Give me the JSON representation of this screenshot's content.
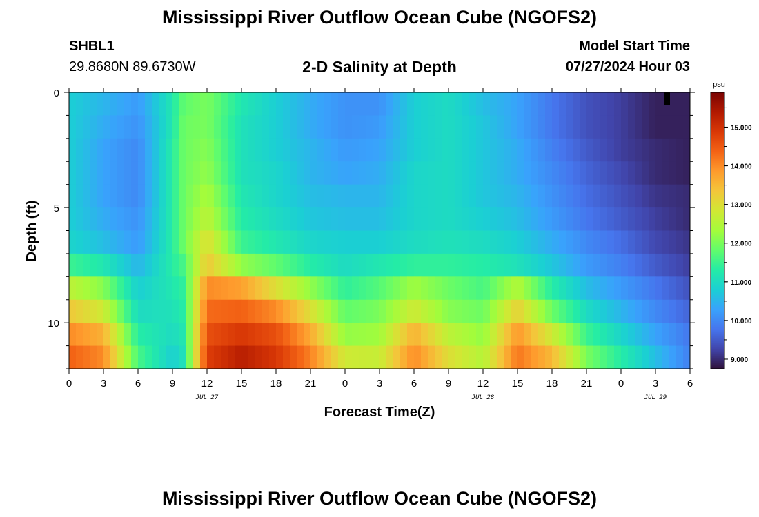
{
  "header": {
    "title": "Mississippi River Outflow Ocean Cube (NGOFS2)",
    "station_id": "SHBL1",
    "station_coords": "29.8680N  89.6730W",
    "subtitle": "2-D Salinity at Depth",
    "start_label": "Model Start Time",
    "start_value": "07/27/2024 Hour 03"
  },
  "footer": {
    "title": "Mississippi River Outflow Ocean Cube (NGOFS2)"
  },
  "chart_data": {
    "type": "heatmap",
    "xlabel": "Forecast Time(Z)",
    "ylabel": "Depth (ft)",
    "x_range_hours": [
      0,
      54
    ],
    "x_tick_labels": [
      "0",
      "3",
      "6",
      "9",
      "12",
      "15",
      "18",
      "21",
      "0",
      "3",
      "6",
      "9",
      "12",
      "15",
      "18",
      "21",
      "0",
      "3",
      "6"
    ],
    "date_labels": [
      {
        "text": "JUL 27",
        "hour": 12
      },
      {
        "text": "JUL 28",
        "hour": 36
      },
      {
        "text": "JUL 29",
        "hour": 51
      }
    ],
    "y_range": [
      0,
      12
    ],
    "y_ticks": [
      0,
      5,
      10
    ],
    "y_inverted": true,
    "colorbar": {
      "unit": "psu",
      "range": [
        8.75,
        15.9
      ],
      "ticks": [
        "9.000",
        "10.000",
        "11.000",
        "12.000",
        "13.000",
        "14.000",
        "15.000"
      ],
      "colors": [
        "#30123b",
        "#4145ab",
        "#4675ed",
        "#39a2fc",
        "#1bcfd4",
        "#24eca6",
        "#61fc6c",
        "#a4fc3b",
        "#d1e834",
        "#f3c63a",
        "#fe9b2d",
        "#f36315",
        "#d93806",
        "#b11901",
        "#7a0403"
      ]
    },
    "depth_levels_ft": [
      0.5,
      1.5,
      2.5,
      3.5,
      4.5,
      5.5,
      6.5,
      7.5,
      8.5,
      9.5,
      10.5,
      11.5
    ],
    "time_hours": [
      0,
      3,
      6,
      9,
      10,
      12,
      15,
      18,
      21,
      24,
      27,
      30,
      33,
      36,
      39,
      42,
      45,
      48,
      51,
      54
    ],
    "salinity_psu": [
      [
        10.8,
        10.5,
        10.2,
        11.2,
        11.8,
        12.0,
        11.2,
        10.8,
        10.4,
        10.1,
        10.1,
        10.8,
        11.0,
        10.6,
        10.3,
        9.8,
        9.4,
        9.2,
        8.9,
        8.9
      ],
      [
        10.8,
        10.4,
        10.1,
        11.2,
        11.9,
        12.0,
        11.1,
        10.8,
        10.4,
        10.1,
        10.2,
        10.8,
        11.0,
        10.7,
        10.3,
        9.8,
        9.4,
        9.2,
        8.9,
        8.9
      ],
      [
        10.8,
        10.3,
        10.0,
        11.3,
        11.9,
        12.1,
        11.1,
        10.8,
        10.5,
        10.2,
        10.3,
        10.8,
        11.0,
        10.7,
        10.4,
        9.9,
        9.5,
        9.2,
        9.0,
        8.9
      ],
      [
        10.8,
        10.3,
        10.0,
        11.3,
        11.9,
        12.2,
        11.1,
        10.9,
        10.5,
        10.3,
        10.4,
        10.9,
        11.0,
        10.7,
        10.4,
        10.0,
        9.6,
        9.3,
        9.0,
        8.9
      ],
      [
        10.8,
        10.3,
        10.0,
        11.3,
        11.9,
        12.4,
        11.2,
        10.9,
        10.6,
        10.5,
        10.5,
        10.9,
        11.0,
        10.7,
        10.5,
        10.1,
        9.7,
        9.4,
        9.1,
        9.0
      ],
      [
        10.8,
        10.4,
        10.1,
        11.3,
        11.9,
        12.6,
        11.3,
        11.0,
        10.7,
        10.6,
        10.6,
        10.9,
        11.0,
        10.8,
        10.6,
        10.2,
        9.8,
        9.5,
        9.2,
        9.0
      ],
      [
        10.9,
        10.6,
        10.2,
        11.3,
        11.9,
        13.0,
        11.5,
        11.2,
        10.9,
        10.8,
        10.8,
        11.0,
        11.1,
        11.0,
        10.8,
        10.4,
        10.0,
        9.7,
        9.3,
        9.1
      ],
      [
        11.5,
        11.2,
        10.5,
        11.3,
        11.6,
        13.3,
        12.2,
        11.8,
        11.3,
        11.0,
        11.2,
        11.4,
        11.4,
        11.3,
        11.1,
        10.7,
        10.2,
        9.9,
        9.5,
        9.2
      ],
      [
        12.6,
        12.1,
        10.8,
        11.2,
        11.4,
        14.0,
        13.8,
        13.0,
        12.2,
        11.4,
        11.7,
        12.3,
        11.9,
        11.6,
        12.5,
        11.3,
        10.6,
        10.2,
        9.8,
        9.4
      ],
      [
        13.3,
        12.8,
        11.0,
        11.1,
        11.3,
        14.3,
        14.4,
        14.0,
        13.0,
        11.8,
        12.0,
        12.8,
        12.1,
        11.9,
        13.2,
        11.9,
        11.0,
        10.5,
        10.0,
        9.6
      ],
      [
        14.0,
        13.6,
        11.3,
        11.0,
        11.2,
        14.6,
        14.9,
        14.6,
        13.7,
        12.2,
        12.3,
        13.6,
        12.6,
        12.2,
        13.9,
        12.8,
        11.5,
        10.9,
        10.3,
        9.8
      ],
      [
        14.4,
        14.0,
        11.6,
        10.8,
        11.1,
        14.8,
        15.3,
        14.9,
        14.1,
        12.8,
        12.7,
        14.0,
        13.0,
        12.5,
        14.2,
        13.5,
        12.0,
        11.3,
        10.6,
        9.9
      ]
    ]
  }
}
